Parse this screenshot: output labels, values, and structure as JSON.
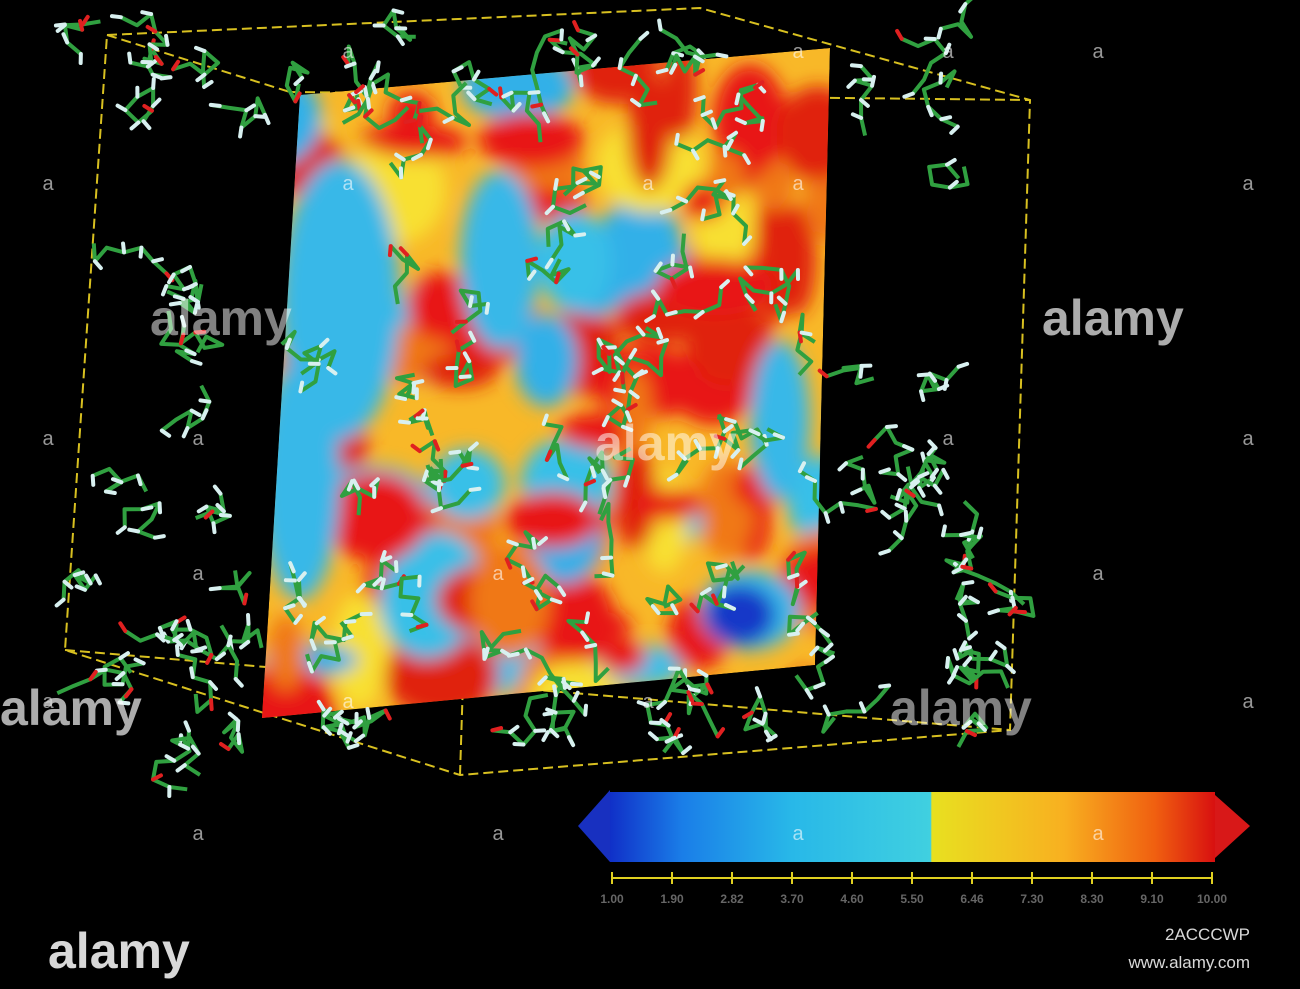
{
  "watermark": {
    "brand": "alamy",
    "mark": "a",
    "image_id": "2ACCCWP",
    "url": "www.alamy.com"
  },
  "colorbar": {
    "ticks": [
      "1.00",
      "1.90",
      "2.82",
      "3.70",
      "4.60",
      "5.50",
      "6.46",
      "7.30",
      "8.30",
      "9.10",
      "10.00"
    ]
  }
}
